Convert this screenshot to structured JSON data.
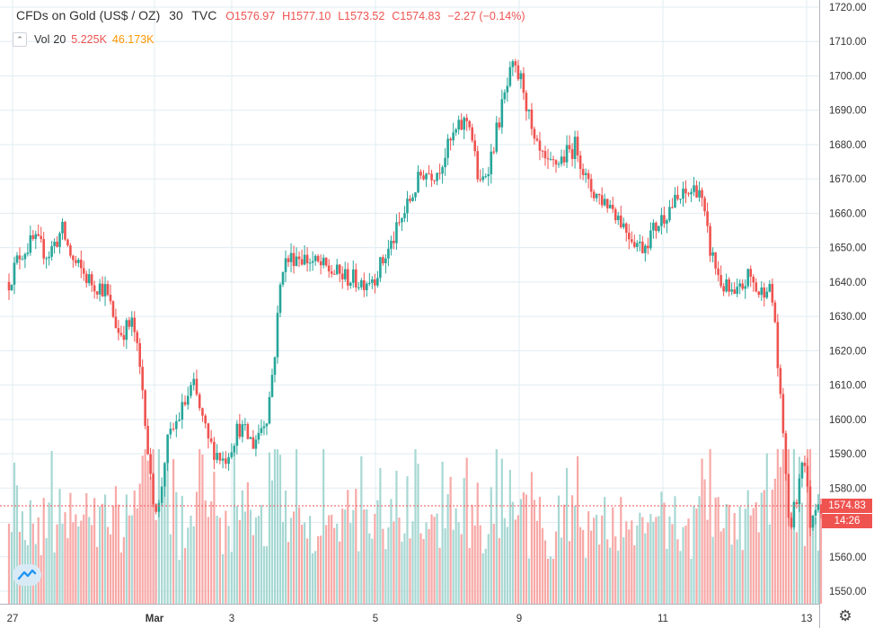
{
  "header": {
    "symbol": "CFDs on Gold (US$ / OZ)",
    "interval": "30",
    "source": "TVC",
    "open": "O1576.97",
    "high": "H1577.10",
    "low": "L1573.52",
    "close": "C1574.83",
    "change": "−2.27 (−0.14%)"
  },
  "volume": {
    "label": "Vol",
    "length": "20",
    "value": "5.225K",
    "ma": "46.173K"
  },
  "price_tag": {
    "last": "1574.83",
    "countdown": "14:26"
  },
  "colors": {
    "up": "#26a69a",
    "down": "#ef5350",
    "vol_up": "#a7d8d3",
    "vol_down": "#f7a9a7",
    "grid": "#e1ecf2"
  },
  "chart_data": {
    "type": "candlestick",
    "title": "CFDs on Gold (US$ / OZ), 30, TVC",
    "y_axis": {
      "min": 1545,
      "max": 1720,
      "ticks": [
        "1720.00",
        "1710.00",
        "1700.00",
        "1690.00",
        "1680.00",
        "1670.00",
        "1660.00",
        "1650.00",
        "1640.00",
        "1630.00",
        "1620.00",
        "1610.00",
        "1600.00",
        "1590.00",
        "1580.00",
        "1570.00",
        "1560.00",
        "1550.00"
      ]
    },
    "x_axis": {
      "domain": [
        0,
        13
      ],
      "labels": [
        {
          "text": "27",
          "x": 0
        },
        {
          "text": "Mar",
          "x": 2
        },
        {
          "text": "3",
          "x": 3
        },
        {
          "text": "5",
          "x": 5
        },
        {
          "text": "9",
          "x": 7
        },
        {
          "text": "11",
          "x": 9
        },
        {
          "text": "13",
          "x": 11
        }
      ]
    },
    "price_path": [
      [
        -0.05,
        1640
      ],
      [
        0.1,
        1648
      ],
      [
        0.3,
        1652
      ],
      [
        0.5,
        1648
      ],
      [
        0.7,
        1655
      ],
      [
        0.85,
        1646
      ],
      [
        1.1,
        1640
      ],
      [
        1.3,
        1638
      ],
      [
        1.5,
        1625
      ],
      [
        1.7,
        1628
      ],
      [
        1.85,
        1606
      ],
      [
        1.95,
        1580
      ],
      [
        2.05,
        1573
      ],
      [
        2.15,
        1592
      ],
      [
        2.3,
        1600
      ],
      [
        2.5,
        1610
      ],
      [
        2.7,
        1593
      ],
      [
        2.9,
        1588
      ],
      [
        3.1,
        1598
      ],
      [
        3.3,
        1593
      ],
      [
        3.5,
        1602
      ],
      [
        3.6,
        1620
      ],
      [
        3.7,
        1645
      ],
      [
        3.9,
        1648
      ],
      [
        4.2,
        1645
      ],
      [
        4.5,
        1642
      ],
      [
        4.8,
        1640
      ],
      [
        5.0,
        1642
      ],
      [
        5.2,
        1650
      ],
      [
        5.4,
        1660
      ],
      [
        5.65,
        1672
      ],
      [
        5.85,
        1672
      ],
      [
        6.1,
        1683
      ],
      [
        6.3,
        1688
      ],
      [
        6.45,
        1667
      ],
      [
        6.6,
        1676
      ],
      [
        6.75,
        1690
      ],
      [
        6.9,
        1702
      ],
      [
        7.05,
        1698
      ],
      [
        7.2,
        1680
      ],
      [
        7.4,
        1673
      ],
      [
        7.6,
        1676
      ],
      [
        7.8,
        1680
      ],
      [
        7.95,
        1668
      ],
      [
        8.1,
        1665
      ],
      [
        8.3,
        1662
      ],
      [
        8.5,
        1655
      ],
      [
        8.7,
        1650
      ],
      [
        8.9,
        1656
      ],
      [
        9.1,
        1662
      ],
      [
        9.3,
        1665
      ],
      [
        9.5,
        1668
      ],
      [
        9.65,
        1650
      ],
      [
        9.8,
        1640
      ],
      [
        10.0,
        1635
      ],
      [
        10.2,
        1642
      ],
      [
        10.35,
        1636
      ],
      [
        10.45,
        1640
      ],
      [
        10.55,
        1632
      ],
      [
        10.62,
        1608
      ],
      [
        10.7,
        1590
      ],
      [
        10.75,
        1568
      ],
      [
        10.85,
        1575
      ],
      [
        10.95,
        1592
      ],
      [
        11.05,
        1570
      ],
      [
        11.15,
        1578
      ],
      [
        11.2,
        1575
      ]
    ],
    "volume_max": 100000
  }
}
